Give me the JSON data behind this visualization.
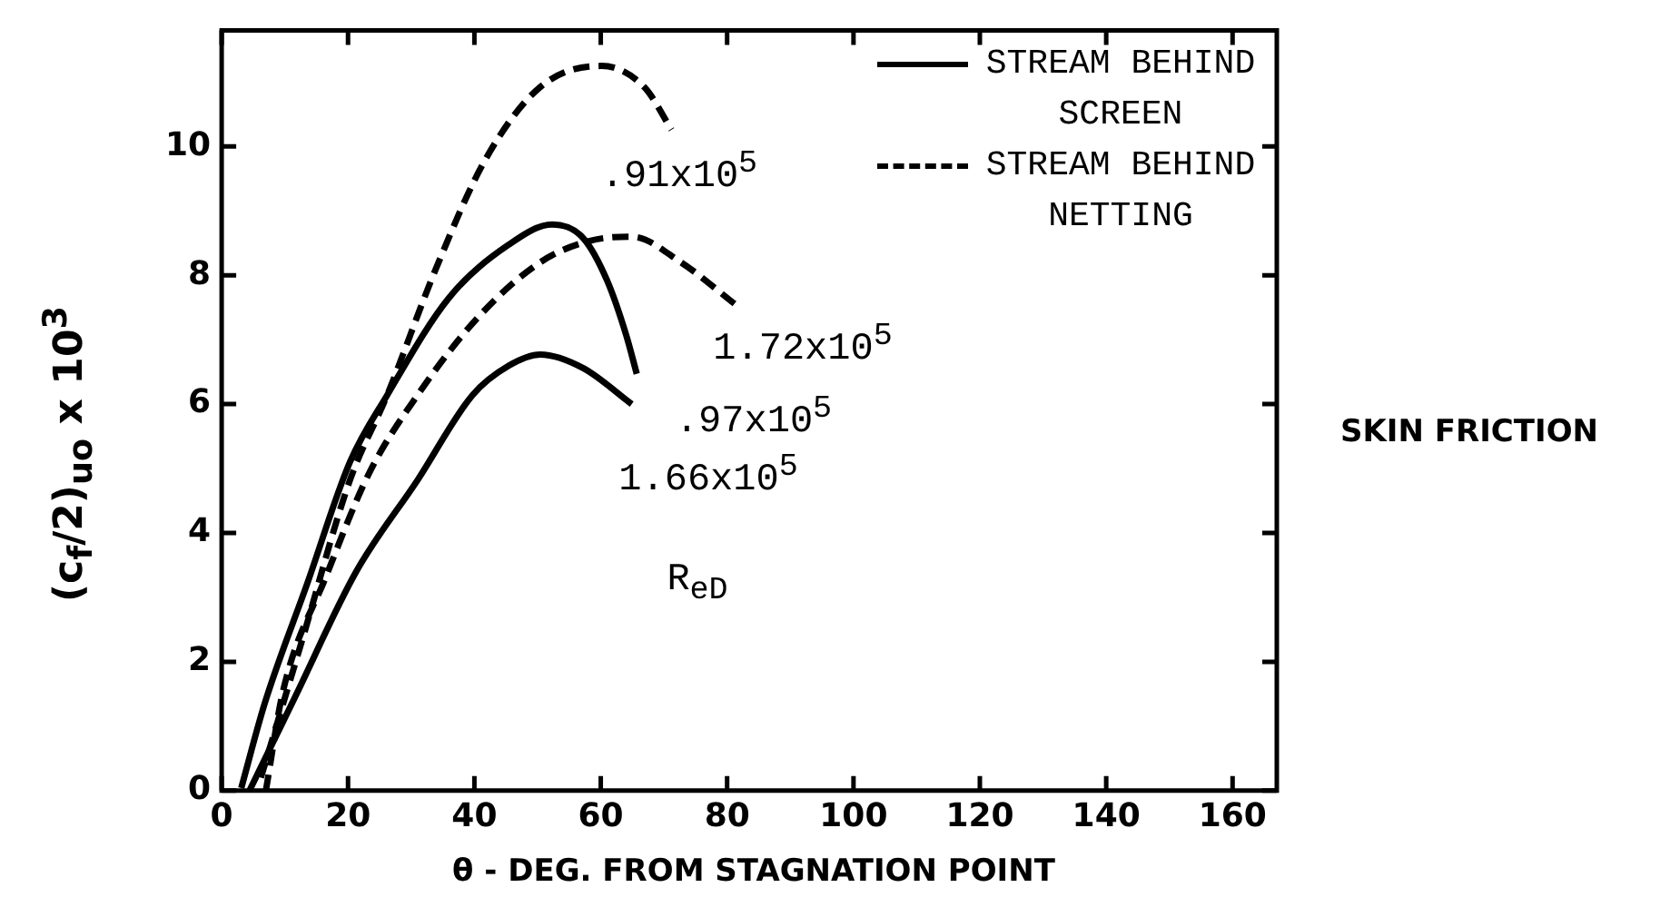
{
  "chart_data": {
    "type": "line",
    "title": "SKIN FRICTION",
    "xlabel": "θ - DEG. FROM STAGNATION POINT",
    "ylabel": "(c$_{f}$/2)$_{uo}$ x 10$^{3}$",
    "xlim": [
      0,
      167
    ],
    "xticks": [
      0,
      20,
      40,
      60,
      80,
      100,
      120,
      140,
      160
    ],
    "ylim": [
      0,
      11.8
    ],
    "yticks": [
      0,
      2,
      4,
      6,
      8,
      10
    ],
    "grid": false,
    "legend": "top right",
    "marker": "none",
    "series": [
      {
        "name": "STREAM BEHIND SCREEN",
        "color": "#000000",
        "line_style": "solid",
        "x": [
          3.1,
          6.8,
          13.6,
          20.3,
          26.2,
          35.9,
          45.5,
          52.3,
          57.2,
          61,
          64,
          65.7
        ],
        "values": [
          0.04,
          1.35,
          3.23,
          5.1,
          6.14,
          7.64,
          8.48,
          8.79,
          8.58,
          7.92,
          7.08,
          6.47
        ]
      },
      {
        "color": "#000000",
        "line_style": "solid",
        "x": [
          4.4,
          11.6,
          21.3,
          31,
          39.7,
          45.5,
          50.4,
          57.2,
          64.9
        ],
        "values": [
          0,
          1.45,
          3.4,
          4.82,
          6.14,
          6.6,
          6.77,
          6.56,
          6.0
        ]
      },
      {
        "name": "STREAM BEHIND NETTING",
        "color": "#000000",
        "line_style": "dashed",
        "x": [
          6.2,
          12.6,
          20.3,
          26.2,
          33.9,
          41.7,
          50.4,
          60.1,
          66.9,
          71.2
        ],
        "values": [
          0.2,
          2.29,
          4.82,
          6.14,
          8.1,
          9.79,
          10.92,
          11.25,
          10.92,
          10.26
        ]
      },
      {
        "color": "#000000",
        "line_style": "dashed",
        "x": [
          7,
          9.7,
          16.5,
          23.3,
          31,
          40.7,
          50.4,
          58.1,
          64.9,
          72.7,
          81.4
        ],
        "values": [
          0,
          1.54,
          3.32,
          4.92,
          6.14,
          7.36,
          8.2,
          8.53,
          8.6,
          8.2,
          7.54
        ]
      }
    ],
    "annotations": [
      ".91x10$^{5}$",
      "1.72x10$^{5}$",
      ".97x10$^{5}$",
      "1.66x10$^{5}$",
      "R$_{eD}$"
    ]
  }
}
